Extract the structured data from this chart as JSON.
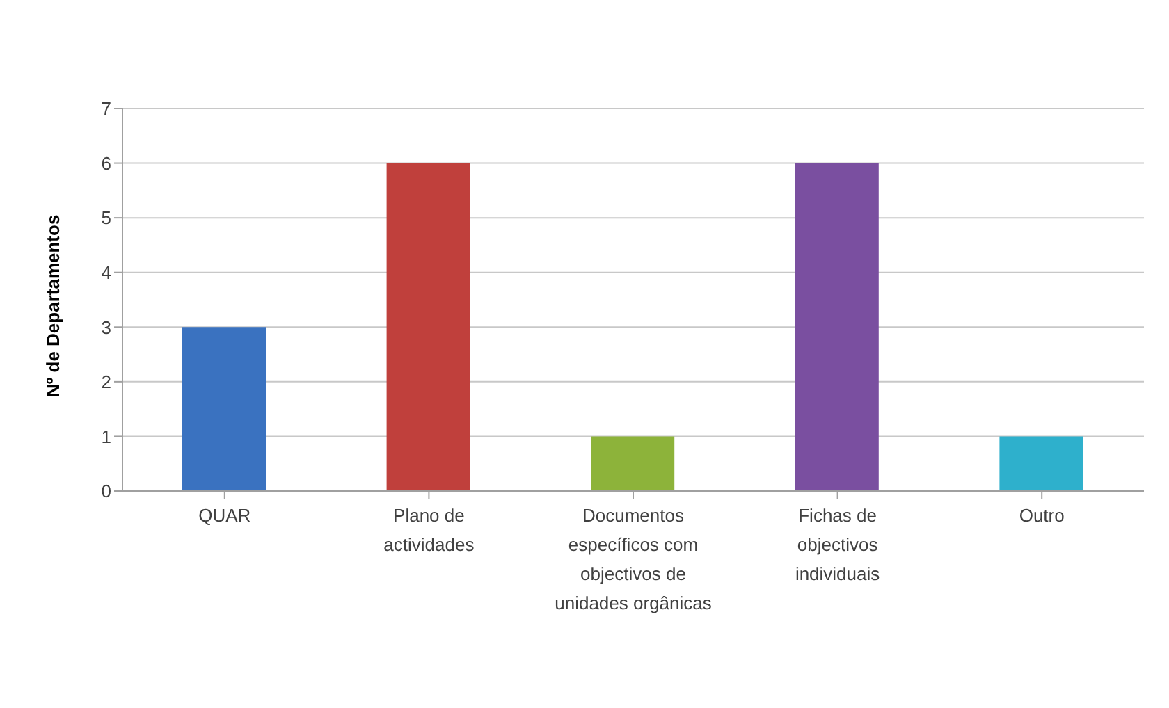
{
  "chart_data": {
    "type": "bar",
    "ylabel": "Nº de Departamentos",
    "categories": [
      "QUAR",
      "Plano de actividades",
      "Documentos específicos com objectivos de unidades orgânicas",
      "Fichas de objectivos individuais",
      "Outro"
    ],
    "values": [
      3,
      6,
      1,
      6,
      1
    ],
    "colors": [
      "#3a72c0",
      "#c0403c",
      "#8db33a",
      "#7a4fa0",
      "#2eb0cc"
    ],
    "ylim": [
      0,
      7
    ],
    "yticks": [
      0,
      1,
      2,
      3,
      4,
      5,
      6,
      7
    ],
    "grid": "y",
    "legend": false
  }
}
